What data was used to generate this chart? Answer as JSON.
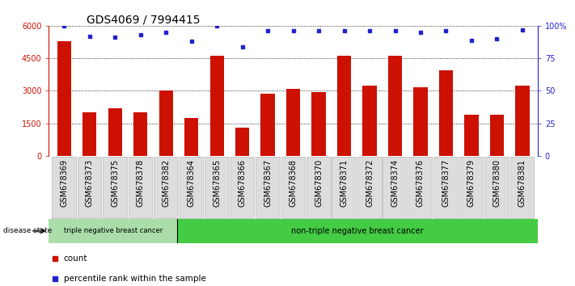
{
  "title": "GDS4069 / 7994415",
  "categories": [
    "GSM678369",
    "GSM678373",
    "GSM678375",
    "GSM678378",
    "GSM678382",
    "GSM678364",
    "GSM678365",
    "GSM678366",
    "GSM678367",
    "GSM678368",
    "GSM678370",
    "GSM678371",
    "GSM678372",
    "GSM678374",
    "GSM678376",
    "GSM678377",
    "GSM678379",
    "GSM678380",
    "GSM678381"
  ],
  "bar_values": [
    5300,
    2000,
    2200,
    2000,
    3000,
    1750,
    4600,
    1300,
    2850,
    3100,
    2950,
    4600,
    3250,
    4600,
    3150,
    3950,
    1900,
    1900,
    3250
  ],
  "percentile_values": [
    100,
    92,
    91,
    93,
    95,
    88,
    100,
    84,
    96,
    96,
    96,
    96,
    96,
    96,
    95,
    96,
    89,
    90,
    97
  ],
  "bar_color": "#cc1100",
  "percentile_color": "#2222cc",
  "ylim_left": [
    0,
    6000
  ],
  "ylim_right": [
    0,
    100
  ],
  "yticks_left": [
    0,
    1500,
    3000,
    4500,
    6000
  ],
  "ytick_labels_left": [
    "0",
    "1500",
    "3000",
    "4500",
    "6000"
  ],
  "yticks_right": [
    0,
    25,
    50,
    75,
    100
  ],
  "ytick_labels_right": [
    "0",
    "25",
    "50",
    "75",
    "100%"
  ],
  "group1_label": "triple negative breast cancer",
  "group2_label": "non-triple negative breast cancer",
  "group1_color": "#aaddaa",
  "group2_color": "#44cc44",
  "group1_count": 5,
  "disease_state_label": "disease state",
  "legend_count_label": "count",
  "legend_percentile_label": "percentile rank within the sample",
  "background_color": "#ffffff",
  "plot_bg_color": "#ffffff",
  "bar_width": 0.55,
  "grid_color": "#000000",
  "title_fontsize": 10,
  "tick_fontsize": 7,
  "label_fontsize": 7
}
